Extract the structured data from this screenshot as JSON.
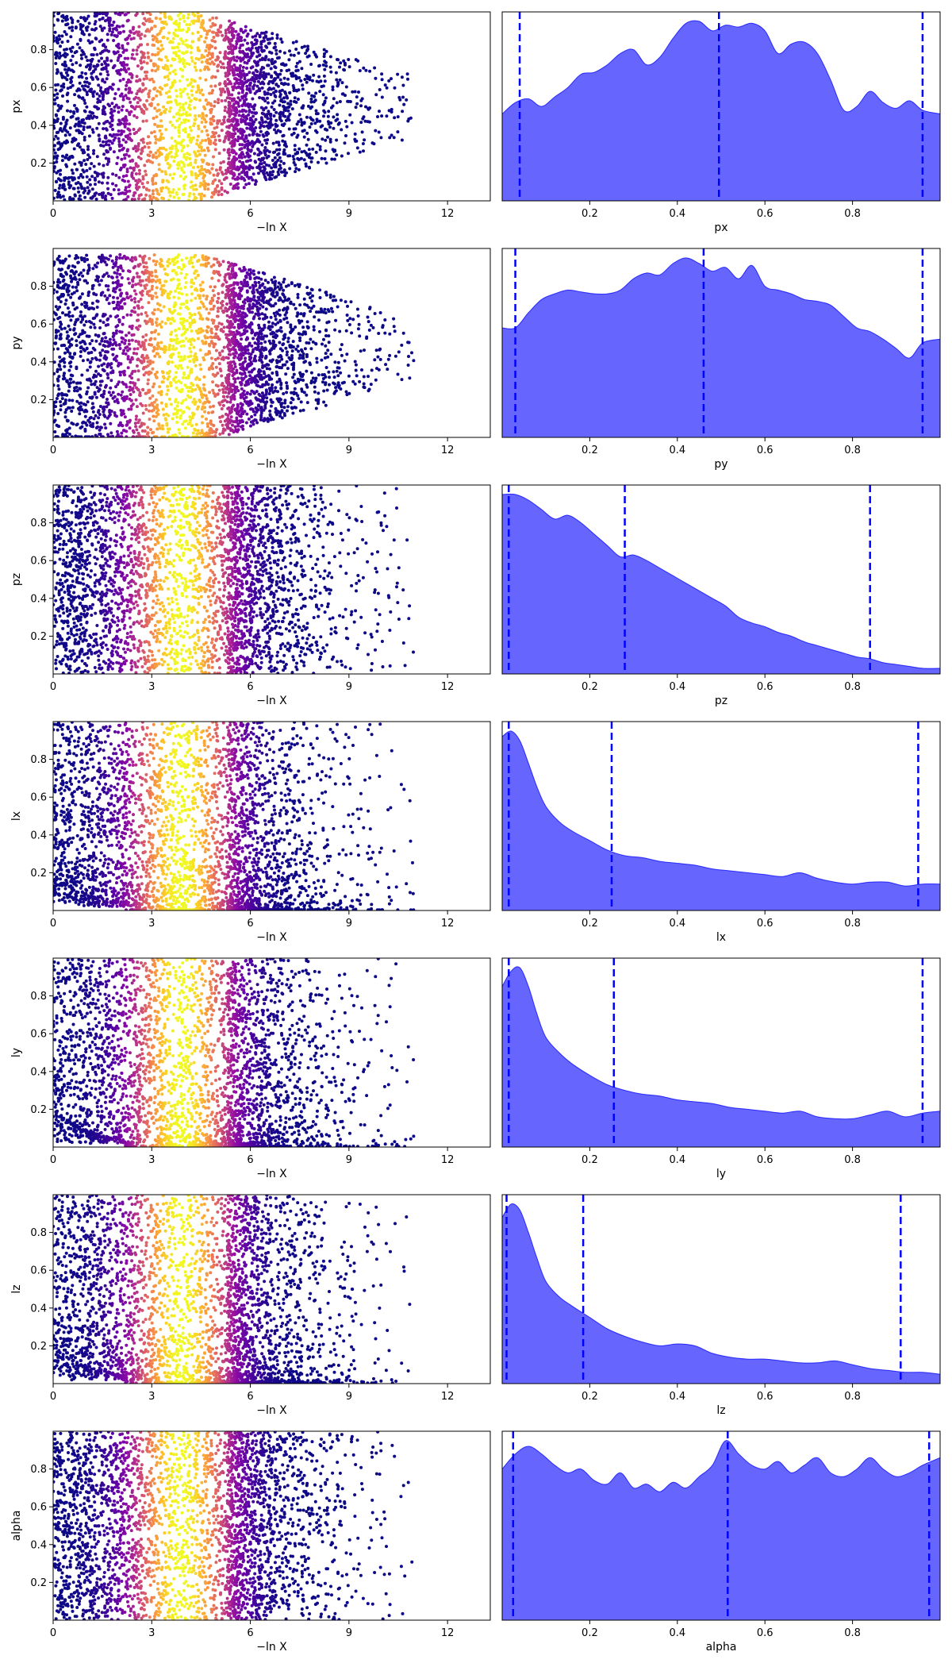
{
  "trace_xlabel": "−ln X",
  "colors": {
    "fill": "#0000ff",
    "fill_opacity": 0.6,
    "quantile_line": "#0000ff",
    "colormap": [
      "#0d0887",
      "#5402a3",
      "#8b0aa5",
      "#b93289",
      "#db5c68",
      "#f48849",
      "#febc2a",
      "#f0f921"
    ]
  },
  "chart_data": [
    {
      "type": "scatter",
      "panel": "trace",
      "param": "px",
      "xlabel": "−ln X",
      "ylabel": "px",
      "xlim": [
        0,
        13.3
      ],
      "ylim": [
        0,
        1
      ],
      "xticks": [
        0,
        3,
        6,
        9,
        12
      ],
      "yticks": [
        0.2,
        0.4,
        0.6,
        0.8
      ],
      "colormap": "plasma",
      "weight_peak_x": 3.9,
      "pattern": "symmetric",
      "center": 0.5,
      "max_x": 13.3
    },
    {
      "type": "area",
      "panel": "marginal",
      "param": "px",
      "xlabel": "px",
      "xlim": [
        0,
        1
      ],
      "xticks": [
        0.2,
        0.4,
        0.6,
        0.8
      ],
      "x": [
        0,
        0.03,
        0.06,
        0.09,
        0.12,
        0.15,
        0.18,
        0.21,
        0.24,
        0.27,
        0.3,
        0.33,
        0.36,
        0.39,
        0.42,
        0.45,
        0.48,
        0.51,
        0.54,
        0.57,
        0.6,
        0.63,
        0.66,
        0.69,
        0.72,
        0.75,
        0.78,
        0.81,
        0.84,
        0.87,
        0.9,
        0.93,
        0.96,
        1.0
      ],
      "density": [
        0.46,
        0.52,
        0.54,
        0.5,
        0.55,
        0.6,
        0.67,
        0.68,
        0.72,
        0.78,
        0.8,
        0.72,
        0.76,
        0.86,
        0.94,
        0.95,
        0.9,
        0.93,
        0.92,
        0.94,
        0.9,
        0.78,
        0.83,
        0.84,
        0.78,
        0.64,
        0.48,
        0.5,
        0.58,
        0.52,
        0.49,
        0.53,
        0.48,
        0.46
      ],
      "quantiles": [
        0.04,
        0.495,
        0.96
      ]
    },
    {
      "type": "scatter",
      "panel": "trace",
      "param": "py",
      "xlabel": "−ln X",
      "ylabel": "py",
      "xlim": [
        0,
        13.3
      ],
      "ylim": [
        0,
        1
      ],
      "xticks": [
        0,
        3,
        6,
        9,
        12
      ],
      "yticks": [
        0.2,
        0.4,
        0.6,
        0.8
      ],
      "colormap": "plasma",
      "weight_peak_x": 3.9,
      "pattern": "symmetric",
      "center": 0.47,
      "max_x": 13.3
    },
    {
      "type": "area",
      "panel": "marginal",
      "param": "py",
      "xlabel": "py",
      "xlim": [
        0,
        1
      ],
      "xticks": [
        0.2,
        0.4,
        0.6,
        0.8
      ],
      "x": [
        0,
        0.03,
        0.06,
        0.09,
        0.12,
        0.15,
        0.18,
        0.21,
        0.24,
        0.27,
        0.3,
        0.33,
        0.36,
        0.39,
        0.42,
        0.45,
        0.48,
        0.51,
        0.54,
        0.57,
        0.6,
        0.63,
        0.66,
        0.69,
        0.72,
        0.75,
        0.78,
        0.81,
        0.84,
        0.87,
        0.9,
        0.93,
        0.96,
        1.0
      ],
      "density": [
        0.58,
        0.58,
        0.66,
        0.73,
        0.76,
        0.78,
        0.77,
        0.76,
        0.76,
        0.78,
        0.84,
        0.87,
        0.86,
        0.92,
        0.95,
        0.92,
        0.88,
        0.9,
        0.84,
        0.91,
        0.8,
        0.78,
        0.76,
        0.73,
        0.72,
        0.7,
        0.64,
        0.58,
        0.56,
        0.52,
        0.47,
        0.42,
        0.5,
        0.52
      ],
      "quantiles": [
        0.03,
        0.46,
        0.96
      ]
    },
    {
      "type": "scatter",
      "panel": "trace",
      "param": "pz",
      "xlabel": "−ln X",
      "ylabel": "pz",
      "xlim": [
        0,
        13.3
      ],
      "ylim": [
        0,
        1
      ],
      "xticks": [
        0,
        3,
        6,
        9,
        12
      ],
      "yticks": [
        0.2,
        0.4,
        0.6,
        0.8
      ],
      "colormap": "plasma",
      "weight_peak_x": 3.9,
      "pattern": "spread",
      "max_x": 13.3
    },
    {
      "type": "area",
      "panel": "marginal",
      "param": "pz",
      "xlabel": "pz",
      "xlim": [
        0,
        1
      ],
      "xticks": [
        0.2,
        0.4,
        0.6,
        0.8
      ],
      "x": [
        0,
        0.03,
        0.06,
        0.09,
        0.12,
        0.15,
        0.18,
        0.21,
        0.24,
        0.27,
        0.3,
        0.33,
        0.36,
        0.39,
        0.42,
        0.45,
        0.48,
        0.51,
        0.54,
        0.57,
        0.6,
        0.63,
        0.66,
        0.69,
        0.72,
        0.75,
        0.78,
        0.81,
        0.84,
        0.87,
        0.9,
        0.93,
        0.96,
        1.0
      ],
      "density": [
        0.95,
        0.95,
        0.92,
        0.87,
        0.82,
        0.84,
        0.8,
        0.74,
        0.68,
        0.62,
        0.63,
        0.6,
        0.56,
        0.52,
        0.48,
        0.44,
        0.4,
        0.36,
        0.3,
        0.27,
        0.25,
        0.22,
        0.2,
        0.17,
        0.15,
        0.13,
        0.11,
        0.09,
        0.08,
        0.06,
        0.05,
        0.04,
        0.03,
        0.03
      ],
      "quantiles": [
        0.015,
        0.28,
        0.84
      ]
    },
    {
      "type": "scatter",
      "panel": "trace",
      "param": "lx",
      "xlabel": "−ln X",
      "ylabel": "lx",
      "xlim": [
        0,
        13.3
      ],
      "ylim": [
        0,
        1
      ],
      "xticks": [
        0,
        3,
        6,
        9,
        12
      ],
      "yticks": [
        0.2,
        0.4,
        0.6,
        0.8
      ],
      "colormap": "plasma",
      "weight_peak_x": 3.9,
      "pattern": "low",
      "max_x": 12.5
    },
    {
      "type": "area",
      "panel": "marginal",
      "param": "lx",
      "xlabel": "lx",
      "xlim": [
        0,
        1
      ],
      "xticks": [
        0.2,
        0.4,
        0.6,
        0.8
      ],
      "x": [
        0,
        0.02,
        0.04,
        0.06,
        0.08,
        0.1,
        0.13,
        0.16,
        0.2,
        0.24,
        0.28,
        0.32,
        0.36,
        0.4,
        0.44,
        0.48,
        0.52,
        0.56,
        0.6,
        0.64,
        0.68,
        0.72,
        0.76,
        0.8,
        0.84,
        0.88,
        0.92,
        0.96,
        1.0
      ],
      "density": [
        0.92,
        0.95,
        0.9,
        0.78,
        0.65,
        0.55,
        0.47,
        0.42,
        0.37,
        0.32,
        0.29,
        0.28,
        0.26,
        0.25,
        0.24,
        0.22,
        0.21,
        0.2,
        0.19,
        0.18,
        0.2,
        0.17,
        0.15,
        0.14,
        0.15,
        0.15,
        0.13,
        0.14,
        0.14
      ],
      "quantiles": [
        0.015,
        0.25,
        0.95
      ]
    },
    {
      "type": "scatter",
      "panel": "trace",
      "param": "ly",
      "xlabel": "−ln X",
      "ylabel": "ly",
      "xlim": [
        0,
        13.3
      ],
      "ylim": [
        0,
        1
      ],
      "xticks": [
        0,
        3,
        6,
        9,
        12
      ],
      "yticks": [
        0.2,
        0.4,
        0.6,
        0.8
      ],
      "colormap": "plasma",
      "weight_peak_x": 3.9,
      "pattern": "low",
      "max_x": 13.3
    },
    {
      "type": "area",
      "panel": "marginal",
      "param": "ly",
      "xlabel": "ly",
      "xlim": [
        0,
        1
      ],
      "xticks": [
        0.2,
        0.4,
        0.6,
        0.8
      ],
      "x": [
        0,
        0.02,
        0.04,
        0.06,
        0.08,
        0.1,
        0.13,
        0.16,
        0.2,
        0.24,
        0.28,
        0.32,
        0.36,
        0.4,
        0.44,
        0.48,
        0.52,
        0.56,
        0.6,
        0.64,
        0.68,
        0.72,
        0.76,
        0.8,
        0.84,
        0.88,
        0.92,
        0.96,
        1.0
      ],
      "density": [
        0.85,
        0.93,
        0.95,
        0.85,
        0.7,
        0.58,
        0.5,
        0.44,
        0.38,
        0.33,
        0.3,
        0.28,
        0.27,
        0.25,
        0.24,
        0.23,
        0.21,
        0.2,
        0.19,
        0.18,
        0.19,
        0.16,
        0.15,
        0.15,
        0.17,
        0.19,
        0.16,
        0.18,
        0.19
      ],
      "quantiles": [
        0.015,
        0.255,
        0.96
      ]
    },
    {
      "type": "scatter",
      "panel": "trace",
      "param": "lz",
      "xlabel": "−ln X",
      "ylabel": "lz",
      "xlim": [
        0,
        13.3
      ],
      "ylim": [
        0,
        1
      ],
      "xticks": [
        0,
        3,
        6,
        9,
        12
      ],
      "yticks": [
        0.2,
        0.4,
        0.6,
        0.8
      ],
      "colormap": "plasma",
      "weight_peak_x": 3.9,
      "pattern": "low",
      "max_x": 13.3
    },
    {
      "type": "area",
      "panel": "marginal",
      "param": "lz",
      "xlabel": "lz",
      "xlim": [
        0,
        1
      ],
      "xticks": [
        0.2,
        0.4,
        0.6,
        0.8
      ],
      "x": [
        0,
        0.02,
        0.04,
        0.06,
        0.08,
        0.1,
        0.13,
        0.16,
        0.2,
        0.24,
        0.28,
        0.32,
        0.36,
        0.4,
        0.44,
        0.48,
        0.52,
        0.56,
        0.6,
        0.64,
        0.68,
        0.72,
        0.76,
        0.8,
        0.84,
        0.88,
        0.92,
        0.96,
        1.0
      ],
      "density": [
        0.88,
        0.95,
        0.92,
        0.8,
        0.66,
        0.54,
        0.46,
        0.41,
        0.35,
        0.29,
        0.25,
        0.22,
        0.2,
        0.21,
        0.2,
        0.16,
        0.14,
        0.13,
        0.13,
        0.12,
        0.11,
        0.11,
        0.12,
        0.1,
        0.08,
        0.07,
        0.06,
        0.06,
        0.05
      ],
      "quantiles": [
        0.01,
        0.185,
        0.91
      ]
    },
    {
      "type": "scatter",
      "panel": "trace",
      "param": "alpha",
      "xlabel": "−ln X",
      "ylabel": "alpha",
      "xlim": [
        0,
        13.3
      ],
      "ylim": [
        0,
        1
      ],
      "xticks": [
        0,
        3,
        6,
        9,
        12
      ],
      "yticks": [
        0.2,
        0.4,
        0.6,
        0.8
      ],
      "colormap": "plasma",
      "weight_peak_x": 3.9,
      "pattern": "spread",
      "max_x": 13.3
    },
    {
      "type": "area",
      "panel": "marginal",
      "param": "alpha",
      "xlabel": "alpha",
      "xlim": [
        0,
        1
      ],
      "xticks": [
        0.2,
        0.4,
        0.6,
        0.8
      ],
      "x": [
        0,
        0.03,
        0.06,
        0.09,
        0.12,
        0.15,
        0.18,
        0.21,
        0.24,
        0.27,
        0.3,
        0.33,
        0.36,
        0.39,
        0.42,
        0.45,
        0.48,
        0.51,
        0.54,
        0.57,
        0.6,
        0.63,
        0.66,
        0.69,
        0.72,
        0.75,
        0.78,
        0.81,
        0.84,
        0.87,
        0.9,
        0.93,
        0.96,
        1.0
      ],
      "density": [
        0.8,
        0.88,
        0.92,
        0.88,
        0.82,
        0.78,
        0.8,
        0.74,
        0.72,
        0.78,
        0.7,
        0.72,
        0.68,
        0.73,
        0.7,
        0.76,
        0.82,
        0.95,
        0.88,
        0.82,
        0.8,
        0.84,
        0.78,
        0.82,
        0.86,
        0.78,
        0.76,
        0.8,
        0.86,
        0.8,
        0.76,
        0.78,
        0.82,
        0.86
      ],
      "quantiles": [
        0.025,
        0.515,
        0.975
      ]
    }
  ]
}
